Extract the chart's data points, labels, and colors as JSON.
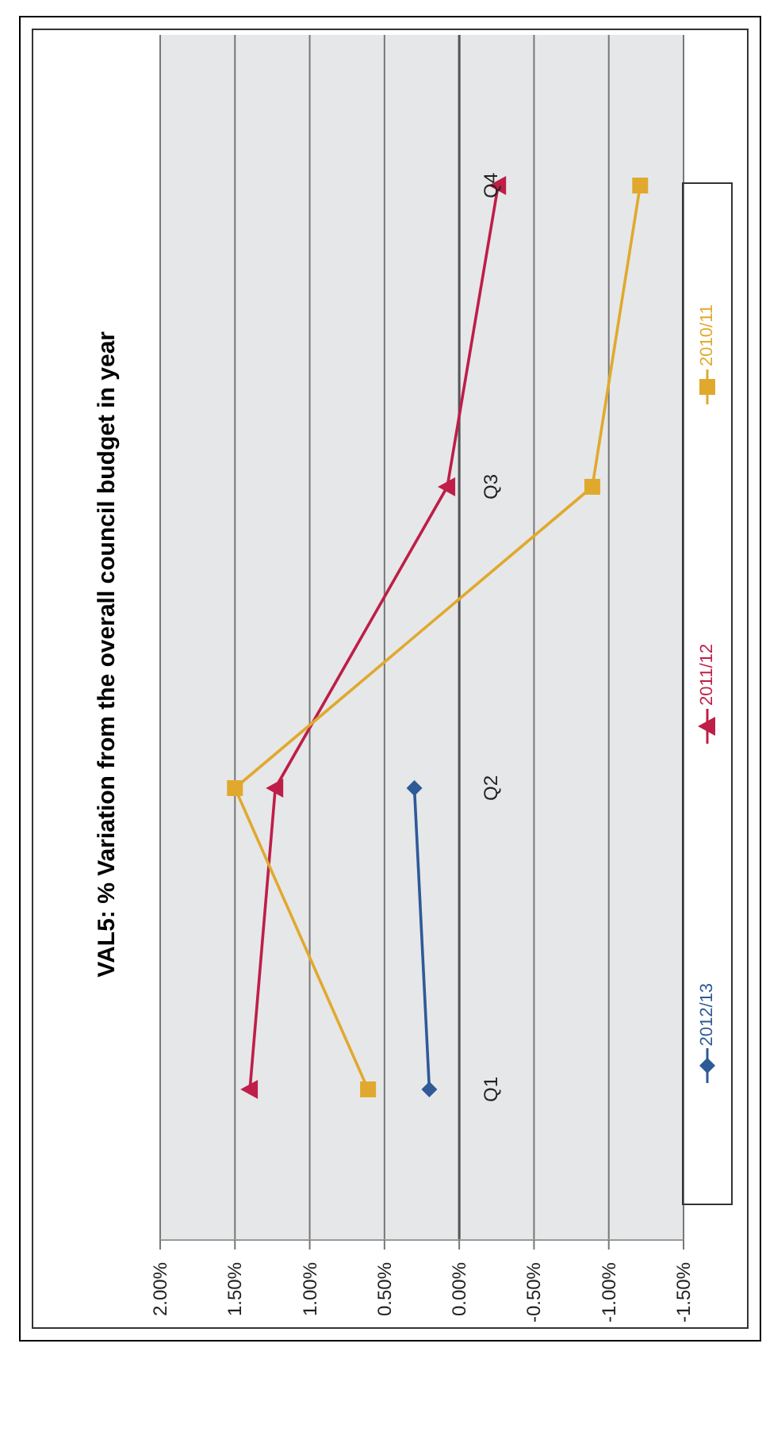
{
  "chart_data": {
    "type": "line",
    "orientation": "horizontal",
    "title": "VAL5: % Variation from the overall council budget in year",
    "categories": [
      "Q4",
      "Q3",
      "Q2",
      "Q1"
    ],
    "series": [
      {
        "name": "2012/13",
        "color": "#2e5a97",
        "marker": "diamond",
        "values": [
          null,
          null,
          0.3,
          0.2
        ]
      },
      {
        "name": "2011/12",
        "color": "#be1e48",
        "marker": "triangle",
        "values": [
          -0.26,
          0.08,
          1.23,
          1.4
        ]
      },
      {
        "name": "2010/11",
        "color": "#e0a92e",
        "marker": "square",
        "values": [
          -1.21,
          -0.89,
          1.5,
          0.61
        ]
      }
    ],
    "xlim": [
      2,
      -1.5
    ],
    "xticks": [
      {
        "value": -1.5,
        "label": "-1.50%"
      },
      {
        "value": -1,
        "label": "-1.00%"
      },
      {
        "value": -0.5,
        "label": "-0.50%"
      },
      {
        "value": 0,
        "label": "0.00%"
      },
      {
        "value": 0.5,
        "label": "0.50%"
      },
      {
        "value": 1,
        "label": "1.00%"
      },
      {
        "value": 1.5,
        "label": "1.50%"
      },
      {
        "value": 2,
        "label": "2.00%"
      }
    ],
    "grid": "x",
    "legend": "right"
  }
}
